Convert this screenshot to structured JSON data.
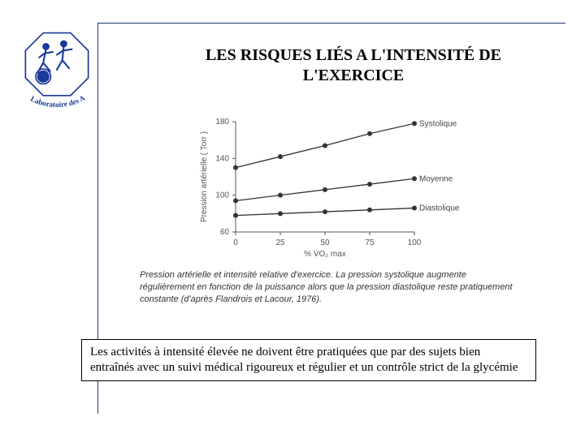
{
  "logo": {
    "text": "Laboratoire des APS",
    "text_color": "#1a3a9a",
    "outline_color": "#1a3a9a",
    "fill_color": "#ffffff"
  },
  "title": "LES RISQUES LIÉS A L'INTENSITÉ DE L'EXERCICE",
  "chart": {
    "type": "line",
    "y_label": "Pression artérielle  ( Torr )",
    "x_label": "% V̇O₂ max",
    "xlim": [
      0,
      100
    ],
    "ylim": [
      60,
      180
    ],
    "x_ticks": [
      0,
      25,
      50,
      75,
      100
    ],
    "y_ticks": [
      60,
      100,
      140,
      180
    ],
    "background_color": "#ffffff",
    "axis_color": "#555555",
    "tick_fontsize": 10,
    "label_fontsize": 10,
    "line_width": 1.3,
    "marker_size": 3,
    "series": [
      {
        "name": "Systolique",
        "color": "#333333",
        "x": [
          0,
          25,
          50,
          75,
          100
        ],
        "y": [
          130,
          142,
          154,
          167,
          178
        ]
      },
      {
        "name": "Moyenne",
        "color": "#333333",
        "x": [
          0,
          25,
          50,
          75,
          100
        ],
        "y": [
          94,
          100,
          106,
          112,
          118
        ]
      },
      {
        "name": "Diastolique",
        "color": "#333333",
        "x": [
          0,
          25,
          50,
          75,
          100
        ],
        "y": [
          78,
          80,
          82,
          84,
          86
        ]
      }
    ]
  },
  "caption": "Pression artérielle et intensité relative d'exercice. La pression systolique augmente régulièrement en fonction de la puissance alors que la pression diastolique reste pratiquement constante (d'après Flandrois et Lacour, 1976).",
  "note": "Les activités à intensité élevée ne doivent être pratiquées que par des sujets bien entraînés avec un suivi médical rigoureux et régulier et un contrôle strict de la glycémie",
  "rules_color": "#1a3a6b"
}
